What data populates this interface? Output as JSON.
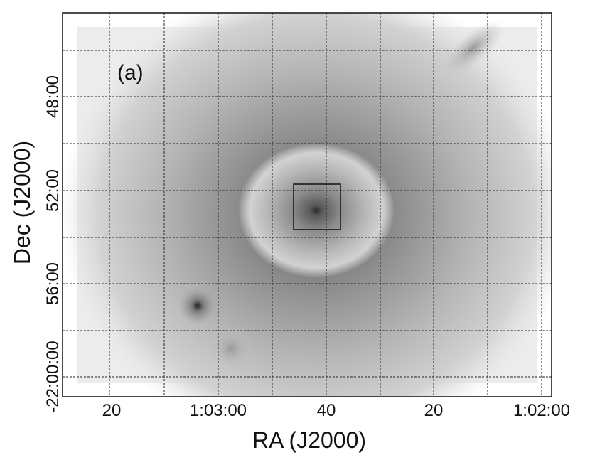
{
  "panel_label": "(a)",
  "x_axis": {
    "label": "RA (J2000)",
    "ticks": [
      "20",
      "1:03:00",
      "40",
      "20",
      "1:02:00"
    ]
  },
  "y_axis": {
    "label": "Dec (J2000)",
    "ticks": [
      "-22:00:00",
      "56:00",
      "52:00",
      "48:00"
    ]
  }
}
